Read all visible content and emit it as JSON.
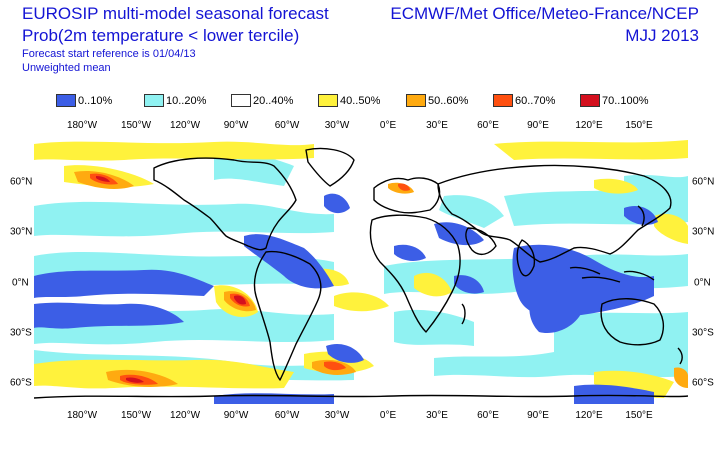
{
  "header": {
    "title": "EUROSIP multi-model seasonal forecast",
    "subtitle": "Prob(2m temperature < lower tercile)",
    "start_ref": "Forecast start reference is 01/04/13",
    "mean_type": "Unweighted mean",
    "centres": "ECMWF/Met Office/Meteo-France/NCEP",
    "season": "MJJ 2013"
  },
  "legend": [
    {
      "label": "0..10%",
      "color": "#3c5ee6"
    },
    {
      "label": "10..20%",
      "color": "#90f2f2"
    },
    {
      "label": "20..40%",
      "color": "#ffffff"
    },
    {
      "label": "40..50%",
      "color": "#fff23c"
    },
    {
      "label": "50..60%",
      "color": "#ffaa10"
    },
    {
      "label": "60..70%",
      "color": "#ff5010"
    },
    {
      "label": "70..100%",
      "color": "#d4101e"
    }
  ],
  "lon_labels": [
    "180°W",
    "150°W",
    "120°W",
    "90°W",
    "60°W",
    "30°W",
    "0°E",
    "30°E",
    "60°E",
    "90°E",
    "120°E",
    "150°E"
  ],
  "lat_labels": [
    "60°N",
    "30°N",
    "0°N",
    "30°S",
    "60°S"
  ]
}
